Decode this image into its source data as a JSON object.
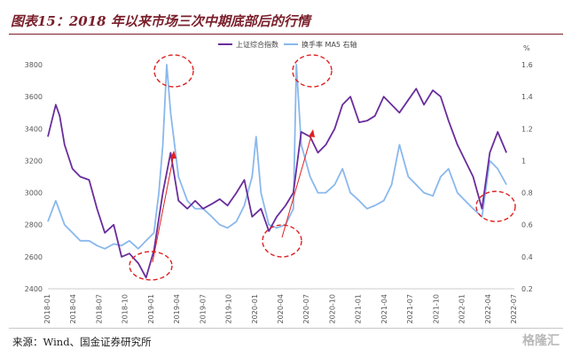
{
  "page": {
    "title": "图表15：2018 年以来市场三次中期底部后的行情",
    "source": "来源：Wind、国金证券研究所",
    "watermark": "格隆汇"
  },
  "colors": {
    "title": "#7a1f2b",
    "series_index": "#6a2d9c",
    "series_turnover": "#8ab8ec",
    "annotation": "#e02020"
  },
  "chart_data": {
    "type": "line",
    "title": "",
    "y_left": {
      "range": [
        2400,
        3800
      ],
      "ticks": [
        2400,
        2600,
        2800,
        3000,
        3200,
        3400,
        3600,
        3800
      ]
    },
    "y_right": {
      "label": "%",
      "range": [
        0.2,
        1.6
      ],
      "ticks": [
        "0.2",
        "0.4",
        "0.6",
        "0.8",
        "1",
        "1.2",
        "1.4",
        "1.6"
      ]
    },
    "x_ticks": [
      "2018-01",
      "2018-04",
      "2018-07",
      "2018-10",
      "2019-01",
      "2019-04",
      "2019-07",
      "2019-10",
      "2020-01",
      "2020-04",
      "2020-07",
      "2020-10",
      "2021-01",
      "2021-04",
      "2021-07",
      "2021-10",
      "2022-01",
      "2022-04",
      "2022-07"
    ],
    "series": [
      {
        "name": "上证综合指数",
        "axis": "left",
        "x": [
          2018.0,
          2018.08,
          2018.12,
          2018.17,
          2018.25,
          2018.33,
          2018.42,
          2018.5,
          2018.58,
          2018.67,
          2018.75,
          2018.83,
          2018.92,
          2019.0,
          2019.08,
          2019.17,
          2019.25,
          2019.33,
          2019.42,
          2019.5,
          2019.58,
          2019.67,
          2019.75,
          2019.83,
          2019.92,
          2020.0,
          2020.08,
          2020.17,
          2020.25,
          2020.33,
          2020.42,
          2020.5,
          2020.58,
          2020.67,
          2020.75,
          2020.83,
          2020.92,
          2021.0,
          2021.08,
          2021.17,
          2021.25,
          2021.33,
          2021.42,
          2021.5,
          2021.58,
          2021.67,
          2021.75,
          2021.83,
          2021.92,
          2022.0,
          2022.08,
          2022.17,
          2022.25,
          2022.33,
          2022.42,
          2022.5,
          2022.58,
          2022.67
        ],
        "values": [
          3350,
          3550,
          3480,
          3300,
          3150,
          3100,
          3080,
          2900,
          2750,
          2800,
          2600,
          2620,
          2560,
          2470,
          2640,
          3000,
          3250,
          2950,
          2900,
          2950,
          2900,
          2930,
          2960,
          2920,
          3000,
          3080,
          2850,
          2900,
          2760,
          2850,
          2920,
          3000,
          3380,
          3350,
          3250,
          3300,
          3400,
          3550,
          3600,
          3440,
          3450,
          3480,
          3600,
          3550,
          3500,
          3580,
          3650,
          3550,
          3640,
          3600,
          3450,
          3300,
          3200,
          3100,
          2900,
          3250,
          3380,
          3250
        ]
      },
      {
        "name": "换手率 MA5 右轴",
        "axis": "right",
        "x": [
          2018.0,
          2018.08,
          2018.17,
          2018.25,
          2018.33,
          2018.42,
          2018.5,
          2018.58,
          2018.67,
          2018.75,
          2018.83,
          2018.92,
          2019.0,
          2019.08,
          2019.13,
          2019.17,
          2019.21,
          2019.25,
          2019.33,
          2019.42,
          2019.5,
          2019.58,
          2019.67,
          2019.75,
          2019.83,
          2019.92,
          2020.0,
          2020.08,
          2020.12,
          2020.17,
          2020.25,
          2020.33,
          2020.42,
          2020.5,
          2020.53,
          2020.58,
          2020.67,
          2020.75,
          2020.83,
          2020.92,
          2021.0,
          2021.08,
          2021.17,
          2021.25,
          2021.33,
          2021.42,
          2021.5,
          2021.58,
          2021.67,
          2021.75,
          2021.83,
          2021.92,
          2022.0,
          2022.08,
          2022.17,
          2022.25,
          2022.33,
          2022.42,
          2022.5,
          2022.58,
          2022.67
        ],
        "values": [
          0.62,
          0.75,
          0.6,
          0.55,
          0.5,
          0.5,
          0.47,
          0.45,
          0.48,
          0.47,
          0.5,
          0.45,
          0.5,
          0.55,
          0.8,
          1.1,
          1.6,
          1.3,
          0.9,
          0.75,
          0.7,
          0.7,
          0.65,
          0.6,
          0.58,
          0.62,
          0.72,
          0.9,
          1.15,
          0.8,
          0.6,
          0.58,
          0.6,
          0.7,
          1.6,
          1.1,
          0.9,
          0.8,
          0.8,
          0.85,
          0.95,
          0.8,
          0.75,
          0.7,
          0.72,
          0.75,
          0.85,
          1.1,
          0.9,
          0.85,
          0.8,
          0.78,
          0.9,
          0.95,
          0.8,
          0.75,
          0.7,
          0.65,
          1.0,
          0.95,
          0.85
        ]
      }
    ],
    "legend_position": "top-center",
    "annotations": [
      "bottom-2019-01",
      "peak-2019-04",
      "bottom-2020-04",
      "peak-2020-07",
      "bottom-2022-04"
    ]
  }
}
